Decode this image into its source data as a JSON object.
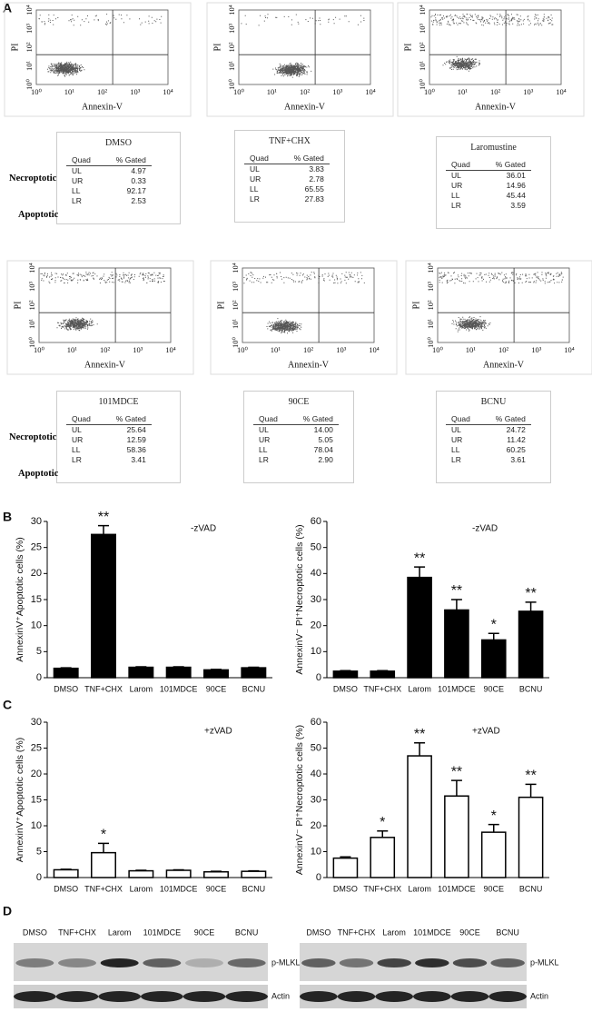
{
  "panel_letters": [
    "A",
    "B",
    "C",
    "D"
  ],
  "flow": {
    "x_label": "Annexin-V",
    "y_label": "PI",
    "axis_ticks": [
      "10⁰",
      "10¹",
      "10²",
      "10³",
      "10⁴"
    ],
    "side_labels": [
      "Necroptotic",
      "Apoptotic"
    ],
    "header": [
      "Quad",
      "% Gated"
    ],
    "tables": [
      {
        "title": "DMSO",
        "rows": [
          [
            "UL",
            "4.97"
          ],
          [
            "UR",
            "0.33"
          ],
          [
            "LL",
            "92.17"
          ],
          [
            "LR",
            "2.53"
          ]
        ]
      },
      {
        "title": "TNF+CHX",
        "rows": [
          [
            "UL",
            "3.83"
          ],
          [
            "UR",
            "2.78"
          ],
          [
            "LL",
            "65.55"
          ],
          [
            "LR",
            "27.83"
          ]
        ]
      },
      {
        "title": "Laromustine",
        "rows": [
          [
            "UL",
            "36.01"
          ],
          [
            "UR",
            "14.96"
          ],
          [
            "LL",
            "45.44"
          ],
          [
            "LR",
            "3.59"
          ]
        ]
      },
      {
        "title": "101MDCE",
        "rows": [
          [
            "UL",
            "25.64"
          ],
          [
            "UR",
            "12.59"
          ],
          [
            "LL",
            "58.36"
          ],
          [
            "LR",
            "3.41"
          ]
        ]
      },
      {
        "title": "90CE",
        "rows": [
          [
            "UL",
            "14.00"
          ],
          [
            "UR",
            "5.05"
          ],
          [
            "LL",
            "78.04"
          ],
          [
            "LR",
            "2.90"
          ]
        ]
      },
      {
        "title": "BCNU",
        "rows": [
          [
            "UL",
            "24.72"
          ],
          [
            "UR",
            "11.42"
          ],
          [
            "LL",
            "60.25"
          ],
          [
            "LR",
            "3.61"
          ]
        ]
      }
    ]
  },
  "chart_data": [
    {
      "type": "bar",
      "label": "-zVAD",
      "y_label": "AnnexinV⁺Apoptotic cells (%)",
      "color": "#000000",
      "categories": [
        "DMSO",
        "TNF+CHX",
        "Larom",
        "101MDCE",
        "90CE",
        "BCNU"
      ],
      "values": [
        1.8,
        27.5,
        2.0,
        2.0,
        1.5,
        1.9
      ],
      "errors": [
        0.1,
        1.7,
        0.1,
        0.1,
        0.1,
        0.1
      ],
      "annotations": [
        null,
        "**",
        null,
        null,
        null,
        null
      ],
      "ylim": [
        0,
        30
      ],
      "yticks": [
        0,
        5,
        10,
        15,
        20,
        25,
        30
      ]
    },
    {
      "type": "bar",
      "label": "-zVAD",
      "y_label": "AnnexinV⁻ PI⁺Necroptotic cells (%)",
      "color": "#000000",
      "categories": [
        "DMSO",
        "TNF+CHX",
        "Larom",
        "101MDCE",
        "90CE",
        "BCNU"
      ],
      "values": [
        2.5,
        2.5,
        38.5,
        26,
        14.5,
        25.5
      ],
      "errors": [
        0.2,
        0.2,
        4,
        4,
        2.5,
        3.5
      ],
      "annotations": [
        null,
        null,
        "**",
        "**",
        "*",
        "**"
      ],
      "ylim": [
        0,
        60
      ],
      "yticks": [
        0,
        10,
        20,
        30,
        40,
        50,
        60
      ]
    },
    {
      "type": "bar",
      "label": "+zVAD",
      "y_label": "AnnexinV⁺Apoptotic cells (%)",
      "color": "#ffffff",
      "categories": [
        "DMSO",
        "TNF+CHX",
        "Larom",
        "101MDCE",
        "90CE",
        "BCNU"
      ],
      "values": [
        1.5,
        4.8,
        1.3,
        1.4,
        1.1,
        1.2
      ],
      "errors": [
        0.1,
        1.8,
        0.1,
        0.1,
        0.1,
        0.1
      ],
      "annotations": [
        null,
        "*",
        null,
        null,
        null,
        null
      ],
      "ylim": [
        0,
        30
      ],
      "yticks": [
        0,
        5,
        10,
        15,
        20,
        25,
        30
      ]
    },
    {
      "type": "bar",
      "label": "+zVAD",
      "y_label": "AnnexinV⁻ PI⁺Necroptotic cells (%)",
      "color": "#ffffff",
      "categories": [
        "DMSO",
        "TNF+CHX",
        "Larom",
        "101MDCE",
        "90CE",
        "BCNU"
      ],
      "values": [
        7.5,
        15.5,
        47,
        31.5,
        17.5,
        31
      ],
      "errors": [
        0.5,
        2.5,
        5,
        6,
        3,
        5
      ],
      "annotations": [
        null,
        "*",
        "**",
        "**",
        "*",
        "**"
      ],
      "ylim": [
        0,
        60
      ],
      "yticks": [
        0,
        10,
        20,
        30,
        40,
        50,
        60
      ]
    }
  ],
  "blots": [
    {
      "lanes": [
        "DMSO",
        "TNF+CHX",
        "Larom",
        "101MDCE",
        "90CE",
        "BCNU"
      ],
      "bands": [
        "p-MLKL",
        "Actin"
      ]
    },
    {
      "lanes": [
        "DMSO",
        "TNF+CHX",
        "Larom",
        "101MDCE",
        "90CE",
        "BCNU"
      ],
      "bands": [
        "p-MLKL",
        "Actin"
      ]
    }
  ]
}
